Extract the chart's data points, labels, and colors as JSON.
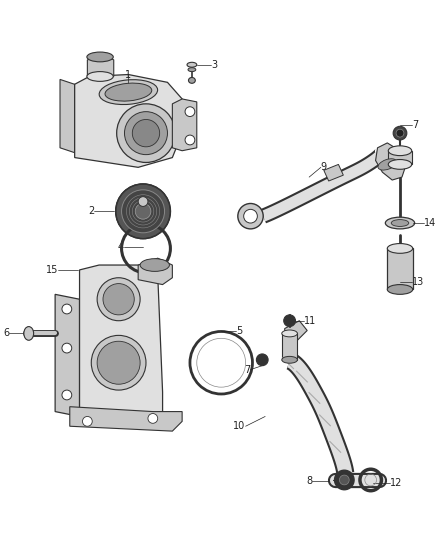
{
  "background_color": "#ffffff",
  "fig_width": 4.38,
  "fig_height": 5.33,
  "dpi": 100,
  "line_color": "#333333",
  "fill_light": "#e0e0e0",
  "fill_mid": "#c8c8c8",
  "fill_dark": "#a0a0a0",
  "fill_vdark": "#606060",
  "text_color": "#222222",
  "label_fontsize": 7.0
}
